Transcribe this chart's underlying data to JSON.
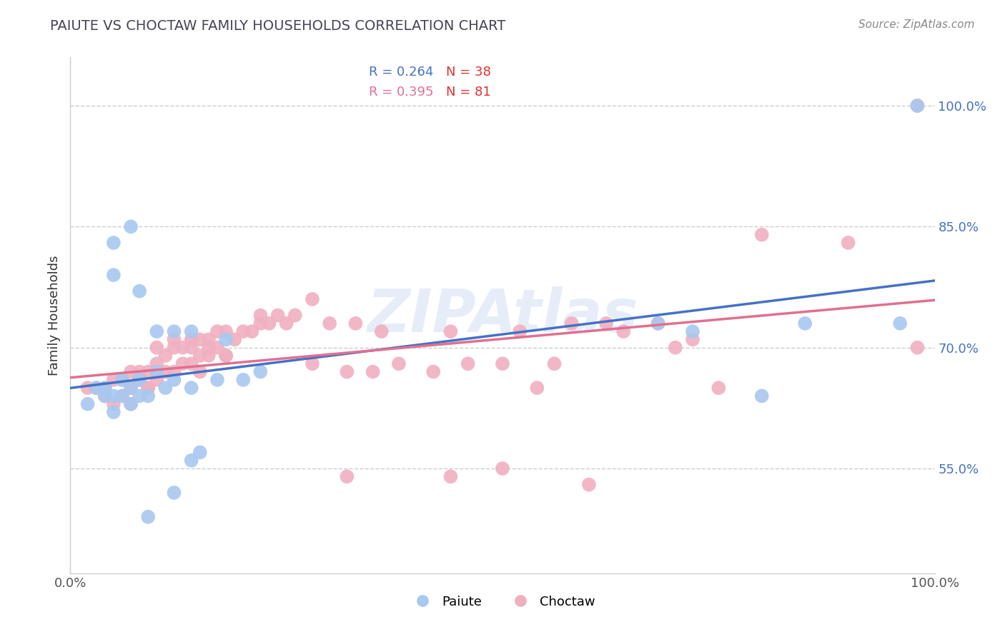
{
  "title": "PAIUTE VS CHOCTAW FAMILY HOUSEHOLDS CORRELATION CHART",
  "source": "Source: ZipAtlas.com",
  "ylabel": "Family Households",
  "xlabel": "",
  "watermark": "ZIPAtlas",
  "paiute_R": 0.264,
  "paiute_N": 38,
  "choctaw_R": 0.395,
  "choctaw_N": 81,
  "paiute_color": "#a8c8f0",
  "choctaw_color": "#f0b0c0",
  "paiute_line_color": "#4472c4",
  "choctaw_line_color": "#e07090",
  "legend_R_color": "#4472c4",
  "legend_N_color": "#e03030",
  "ytick_labels": [
    "55.0%",
    "70.0%",
    "85.0%",
    "100.0%"
  ],
  "ytick_values": [
    0.55,
    0.7,
    0.85,
    1.0
  ],
  "xmin": 0.0,
  "xmax": 1.0,
  "ymin": 0.42,
  "ymax": 1.06,
  "paiute_x": [
    0.02,
    0.03,
    0.04,
    0.04,
    0.05,
    0.05,
    0.05,
    0.06,
    0.06,
    0.07,
    0.07,
    0.08,
    0.08,
    0.09,
    0.09,
    0.1,
    0.11,
    0.12,
    0.12,
    0.14,
    0.14,
    0.15,
    0.17,
    0.2,
    0.05,
    0.07,
    0.08,
    0.1,
    0.12,
    0.14,
    0.18,
    0.22,
    0.68,
    0.72,
    0.8,
    0.85,
    0.96,
    0.98
  ],
  "paiute_y": [
    0.63,
    0.65,
    0.65,
    0.64,
    0.64,
    0.62,
    0.79,
    0.64,
    0.66,
    0.65,
    0.63,
    0.64,
    0.66,
    0.64,
    0.49,
    0.67,
    0.65,
    0.66,
    0.52,
    0.65,
    0.56,
    0.57,
    0.66,
    0.66,
    0.83,
    0.85,
    0.77,
    0.72,
    0.72,
    0.72,
    0.71,
    0.67,
    0.73,
    0.72,
    0.64,
    0.73,
    0.73,
    1.0
  ],
  "choctaw_x": [
    0.02,
    0.03,
    0.04,
    0.04,
    0.05,
    0.06,
    0.07,
    0.07,
    0.08,
    0.08,
    0.09,
    0.09,
    0.1,
    0.1,
    0.11,
    0.11,
    0.12,
    0.12,
    0.13,
    0.13,
    0.14,
    0.14,
    0.15,
    0.15,
    0.15,
    0.16,
    0.16,
    0.17,
    0.17,
    0.18,
    0.18,
    0.19,
    0.2,
    0.21,
    0.22,
    0.23,
    0.24,
    0.25,
    0.26,
    0.28,
    0.28,
    0.3,
    0.32,
    0.33,
    0.35,
    0.36,
    0.38,
    0.42,
    0.44,
    0.46,
    0.5,
    0.52,
    0.54,
    0.56,
    0.58,
    0.62,
    0.64,
    0.68,
    0.72,
    0.75,
    0.8,
    0.04,
    0.05,
    0.06,
    0.07,
    0.08,
    0.09,
    0.1,
    0.12,
    0.14,
    0.16,
    0.18,
    0.22,
    0.32,
    0.44,
    0.5,
    0.6,
    0.7,
    0.9,
    0.98,
    0.98
  ],
  "choctaw_y": [
    0.65,
    0.65,
    0.64,
    0.65,
    0.66,
    0.66,
    0.67,
    0.65,
    0.67,
    0.66,
    0.67,
    0.65,
    0.68,
    0.66,
    0.69,
    0.67,
    0.7,
    0.67,
    0.7,
    0.68,
    0.7,
    0.68,
    0.71,
    0.69,
    0.67,
    0.71,
    0.69,
    0.72,
    0.7,
    0.72,
    0.69,
    0.71,
    0.72,
    0.72,
    0.74,
    0.73,
    0.74,
    0.73,
    0.74,
    0.76,
    0.68,
    0.73,
    0.67,
    0.73,
    0.67,
    0.72,
    0.68,
    0.67,
    0.72,
    0.68,
    0.68,
    0.72,
    0.65,
    0.68,
    0.73,
    0.73,
    0.72,
    0.73,
    0.71,
    0.65,
    0.84,
    0.64,
    0.63,
    0.64,
    0.63,
    0.66,
    0.65,
    0.7,
    0.71,
    0.71,
    0.7,
    0.69,
    0.73,
    0.54,
    0.54,
    0.55,
    0.53,
    0.7,
    0.83,
    0.7,
    1.0
  ]
}
